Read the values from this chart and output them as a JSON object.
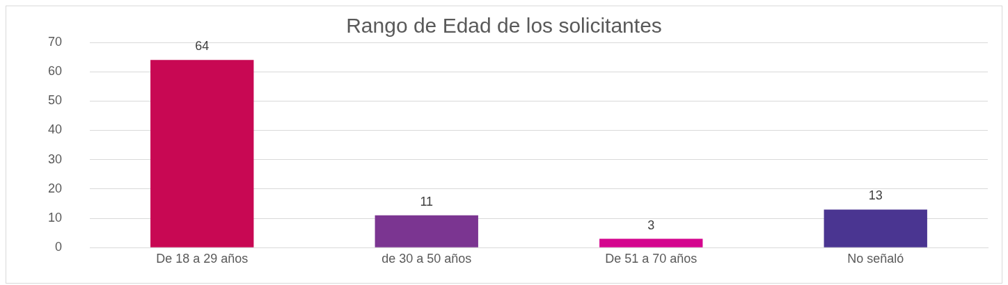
{
  "chart_data": {
    "type": "bar",
    "title": "Rango de Edad de los solicitantes",
    "categories": [
      "De 18 a 29 años",
      "de 30 a 50 años",
      "De 51 a 70 años",
      "No señaló"
    ],
    "values": [
      64,
      11,
      3,
      13
    ],
    "colors": [
      "#c80853",
      "#7b3591",
      "#d4058e",
      "#4a3591"
    ],
    "ylim": [
      0,
      70
    ],
    "yticks": [
      0,
      10,
      20,
      30,
      40,
      50,
      60,
      70
    ],
    "grid": "y",
    "data_labels": true,
    "legend": false
  }
}
